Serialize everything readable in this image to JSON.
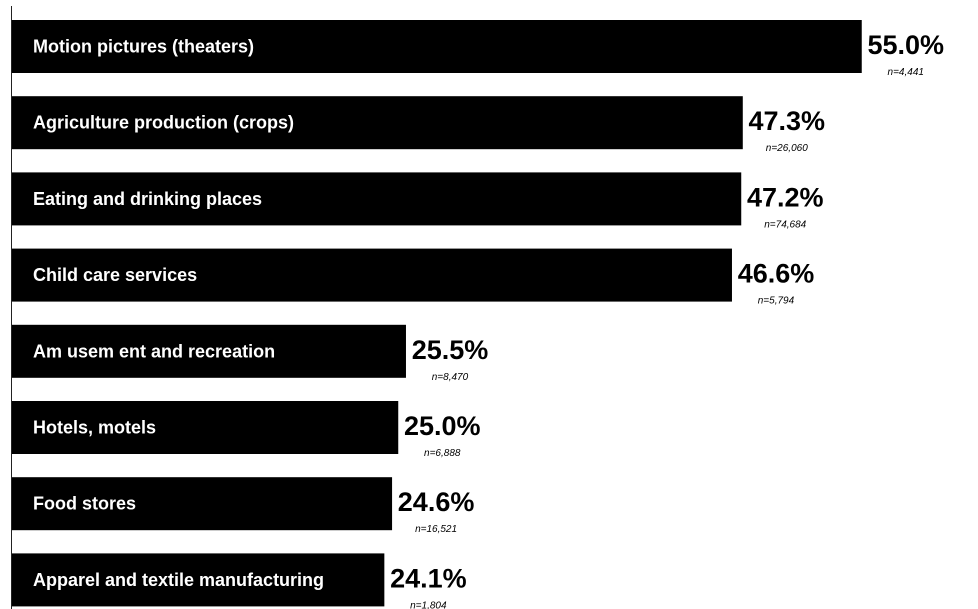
{
  "chart_data": {
    "type": "bar",
    "orientation": "horizontal",
    "categories": [
      "Motion pictures (theaters)",
      "Agriculture production (crops)",
      "Eating and drinking places",
      "Child care services",
      "Am usem ent and recreation",
      "Hotels, motels",
      "Food stores",
      "Apparel and textile manufacturing"
    ],
    "values": [
      55.0,
      47.3,
      47.2,
      46.6,
      25.5,
      25.0,
      24.6,
      24.1
    ],
    "value_labels": [
      "55.0%",
      "47.3%",
      "47.2%",
      "46.6%",
      "25.5%",
      "25.0%",
      "24.6%",
      "24.1%"
    ],
    "n_labels": [
      "n=4,441",
      "n=26,060",
      "n=74,684",
      "n=5,794",
      "n=8,470",
      "n=6,888",
      "n=16,521",
      "n=1,804"
    ],
    "bar_color": "#000000",
    "label_color": "#ffffff",
    "grid": false,
    "legend": "none"
  }
}
